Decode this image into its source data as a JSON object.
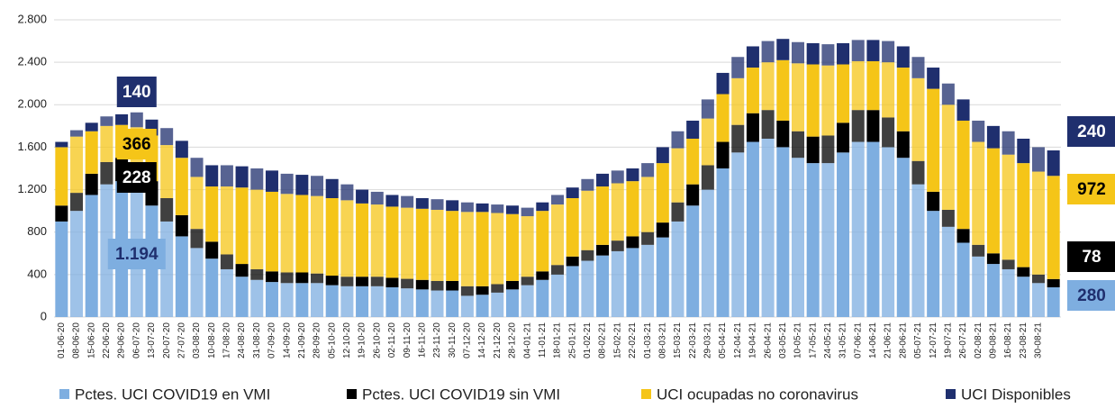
{
  "chart_data": {
    "type": "stacked_bar",
    "categories": [
      "01-06-20",
      "08-06-20",
      "15-06-20",
      "22-06-20",
      "29-06-20",
      "06-07-20",
      "13-07-20",
      "20-07-20",
      "27-07-20",
      "03-08-20",
      "10-08-20",
      "17-08-20",
      "24-08-20",
      "31-08-20",
      "07-09-20",
      "14-09-20",
      "21-09-20",
      "28-09-20",
      "05-10-20",
      "12-10-20",
      "19-10-20",
      "26-10-20",
      "02-11-20",
      "09-11-20",
      "16-11-20",
      "23-11-20",
      "30-11-20",
      "07-12-20",
      "14-12-20",
      "21-12-20",
      "28-12-20",
      "04-01-21",
      "11-01-21",
      "18-01-21",
      "25-01-21",
      "01-02-21",
      "08-02-21",
      "15-02-21",
      "22-02-21",
      "01-03-21",
      "08-03-21",
      "15-03-21",
      "22-03-21",
      "29-03-21",
      "05-04-21",
      "12-04-21",
      "19-04-21",
      "26-04-21",
      "03-05-21",
      "10-05-21",
      "17-05-21",
      "24-05-21",
      "31-05-21",
      "07-06-21",
      "14-06-21",
      "21-06-21",
      "28-06-21",
      "05-07-21",
      "12-07-21",
      "19-07-21",
      "26-07-21",
      "02-08-21",
      "09-08-21",
      "16-08-21",
      "23-08-21",
      "30-08-21",
      null
    ],
    "series": [
      {
        "name": "Pctes. UCI COVID19 en VMI",
        "color": "#7eaee0",
        "values": [
          900,
          1000,
          1150,
          1250,
          1280,
          1194,
          1050,
          900,
          760,
          650,
          550,
          450,
          380,
          350,
          330,
          320,
          320,
          320,
          300,
          290,
          290,
          290,
          280,
          270,
          260,
          250,
          250,
          200,
          210,
          230,
          260,
          300,
          350,
          400,
          480,
          530,
          580,
          620,
          650,
          680,
          750,
          900,
          1050,
          1200,
          1400,
          1550,
          1650,
          1680,
          1600,
          1500,
          1450,
          1450,
          1550,
          1650,
          1650,
          1600,
          1500,
          1250,
          1000,
          850,
          700,
          570,
          500,
          450,
          380,
          320,
          280
        ],
        "value_labels": [
          null,
          null,
          null,
          null,
          null,
          "1.194",
          null,
          null,
          null,
          null,
          null,
          null,
          null,
          null,
          null,
          null,
          null,
          null,
          null,
          null,
          null,
          null,
          null,
          null,
          null,
          null,
          null,
          null,
          null,
          null,
          null,
          null,
          null,
          null,
          null,
          null,
          null,
          null,
          null,
          null,
          null,
          null,
          null,
          null,
          null,
          null,
          null,
          null,
          null,
          null,
          null,
          null,
          null,
          null,
          null,
          null,
          null,
          null,
          null,
          null,
          null,
          null,
          null,
          null,
          null,
          null,
          "280"
        ]
      },
      {
        "name": "Pctes. UCI COVID19 sin VMI",
        "color": "#000000",
        "values": [
          150,
          170,
          200,
          210,
          220,
          228,
          230,
          220,
          200,
          180,
          160,
          140,
          120,
          100,
          100,
          100,
          100,
          90,
          90,
          90,
          90,
          90,
          90,
          90,
          90,
          90,
          90,
          90,
          80,
          80,
          80,
          80,
          80,
          90,
          90,
          100,
          100,
          100,
          110,
          120,
          140,
          180,
          200,
          230,
          250,
          260,
          270,
          270,
          250,
          250,
          250,
          260,
          280,
          300,
          300,
          280,
          250,
          220,
          180,
          160,
          130,
          110,
          100,
          90,
          90,
          80,
          78
        ],
        "value_labels": [
          null,
          null,
          null,
          null,
          null,
          "228",
          null,
          null,
          null,
          null,
          null,
          null,
          null,
          null,
          null,
          null,
          null,
          null,
          null,
          null,
          null,
          null,
          null,
          null,
          null,
          null,
          null,
          null,
          null,
          null,
          null,
          null,
          null,
          null,
          null,
          null,
          null,
          null,
          null,
          null,
          null,
          null,
          null,
          null,
          null,
          null,
          null,
          null,
          null,
          null,
          null,
          null,
          null,
          null,
          null,
          null,
          null,
          null,
          null,
          null,
          null,
          null,
          null,
          null,
          null,
          null,
          "78"
        ]
      },
      {
        "name": "UCI ocupadas no coronavirus",
        "color": "#f5c518",
        "values": [
          550,
          530,
          400,
          340,
          310,
          366,
          430,
          500,
          540,
          490,
          520,
          640,
          720,
          750,
          750,
          740,
          730,
          730,
          730,
          720,
          690,
          680,
          670,
          670,
          670,
          670,
          660,
          700,
          700,
          670,
          630,
          570,
          570,
          570,
          550,
          560,
          550,
          540,
          520,
          520,
          560,
          510,
          430,
          440,
          450,
          440,
          430,
          450,
          570,
          640,
          680,
          660,
          550,
          460,
          460,
          520,
          600,
          780,
          970,
          990,
          1020,
          970,
          990,
          990,
          980,
          970,
          972
        ],
        "value_labels": [
          null,
          null,
          null,
          null,
          null,
          "366",
          null,
          null,
          null,
          null,
          null,
          null,
          null,
          null,
          null,
          null,
          null,
          null,
          null,
          null,
          null,
          null,
          null,
          null,
          null,
          null,
          null,
          null,
          null,
          null,
          null,
          null,
          null,
          null,
          null,
          null,
          null,
          null,
          null,
          null,
          null,
          null,
          null,
          null,
          null,
          null,
          null,
          null,
          null,
          null,
          null,
          null,
          null,
          null,
          null,
          null,
          null,
          null,
          null,
          null,
          null,
          null,
          null,
          null,
          null,
          null,
          "972"
        ]
      },
      {
        "name": "UCI Disponibles",
        "color": "#1f2f6e",
        "values": [
          50,
          60,
          80,
          90,
          100,
          140,
          150,
          160,
          160,
          180,
          200,
          200,
          200,
          200,
          200,
          190,
          190,
          190,
          180,
          150,
          130,
          120,
          110,
          110,
          100,
          100,
          100,
          90,
          80,
          80,
          80,
          80,
          80,
          90,
          100,
          110,
          120,
          120,
          120,
          130,
          150,
          160,
          170,
          180,
          200,
          200,
          200,
          200,
          200,
          200,
          200,
          200,
          200,
          200,
          200,
          200,
          200,
          200,
          200,
          200,
          200,
          200,
          210,
          220,
          230,
          230,
          240
        ],
        "value_labels": [
          null,
          null,
          null,
          null,
          null,
          "140",
          null,
          null,
          null,
          null,
          null,
          null,
          null,
          null,
          null,
          null,
          null,
          null,
          null,
          null,
          null,
          null,
          null,
          null,
          null,
          null,
          null,
          null,
          null,
          null,
          null,
          null,
          null,
          null,
          null,
          null,
          null,
          null,
          null,
          null,
          null,
          null,
          null,
          null,
          null,
          null,
          null,
          null,
          null,
          null,
          null,
          null,
          null,
          null,
          null,
          null,
          null,
          null,
          null,
          null,
          null,
          null,
          null,
          null,
          null,
          null,
          "240"
        ]
      }
    ],
    "ylim": [
      0,
      2800
    ],
    "yticks": [
      0,
      400,
      800,
      {
        "value": 1200,
        "label": "1.200"
      },
      {
        "value": 1600,
        "label": "1.600"
      },
      {
        "value": 2000,
        "label": "2.000"
      },
      {
        "value": 2400,
        "label": "2.400"
      },
      {
        "value": 2800,
        "label": "2.800"
      }
    ],
    "grid": true,
    "legend": "bottom"
  }
}
